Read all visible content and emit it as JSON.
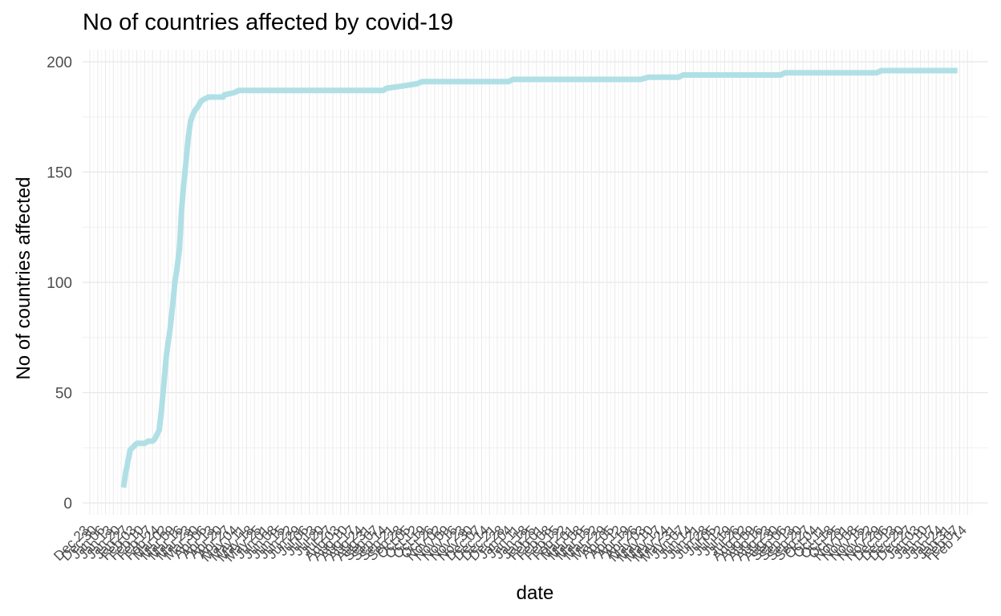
{
  "chart_data": {
    "type": "line",
    "title": "No of countries affected by covid-19",
    "xlabel": "date",
    "ylabel": "No of countries affected",
    "x_type": "date",
    "ylim": [
      0,
      200
    ],
    "yticks": [
      0,
      50,
      100,
      150,
      200
    ],
    "grid": true,
    "line_color": "#b0e0e6",
    "x_tick_labels": [
      "Dec 23",
      "Dec 30",
      "Jan 06",
      "Jan 13",
      "Jan 20",
      "Jan 27",
      "Feb 03",
      "Feb 10",
      "Feb 17",
      "Feb 24",
      "Mar 02",
      "Mar 09",
      "Mar 16",
      "Mar 23",
      "Mar 30",
      "Apr 06",
      "Apr 13",
      "Apr 20",
      "Apr 27",
      "May 04",
      "May 11",
      "May 18",
      "May 25",
      "Jun 01",
      "Jun 08",
      "Jun 15",
      "Jun 22",
      "Jun 29",
      "Jul 06",
      "Jul 13",
      "Jul 20",
      "Jul 27",
      "Aug 03",
      "Aug 10",
      "Aug 17",
      "Aug 24",
      "Aug 31",
      "Sep 07",
      "Sep 14",
      "Sep 21",
      "Sep 28",
      "Oct 05",
      "Oct 12",
      "Oct 19",
      "Oct 26",
      "Nov 02",
      "Nov 09",
      "Nov 16",
      "Nov 23",
      "Nov 30",
      "Dec 07",
      "Dec 14",
      "Dec 21",
      "Dec 28",
      "Jan 04",
      "Jan 11",
      "Jan 18",
      "Jan 25",
      "Feb 01",
      "Feb 08",
      "Feb 15",
      "Feb 22",
      "Mar 01",
      "Mar 08",
      "Mar 15",
      "Mar 22",
      "Mar 29",
      "Apr 05",
      "Apr 12",
      "Apr 19",
      "Apr 26",
      "May 03",
      "May 10",
      "May 17",
      "May 24",
      "May 31",
      "Jun 07",
      "Jun 14",
      "Jun 21",
      "Jun 28",
      "Jul 05",
      "Jul 12",
      "Jul 19",
      "Jul 26",
      "Aug 02",
      "Aug 09",
      "Aug 16",
      "Aug 23",
      "Aug 30",
      "Sep 06",
      "Sep 13",
      "Sep 20",
      "Sep 27",
      "Oct 04",
      "Oct 11",
      "Oct 18",
      "Oct 25",
      "Nov 01",
      "Nov 08",
      "Nov 15",
      "Nov 22",
      "Nov 29",
      "Dec 06",
      "Dec 13",
      "Dec 20",
      "Dec 27",
      "Jan 03",
      "Jan 10",
      "Jan 17",
      "Jan 24",
      "Jan 31",
      "Feb 07",
      "Feb 14"
    ],
    "series": [
      {
        "points": [
          [
            "2020-01-22",
            7
          ],
          [
            "2020-01-23",
            10
          ],
          [
            "2020-01-24",
            14
          ],
          [
            "2020-01-25",
            16
          ],
          [
            "2020-01-26",
            19
          ],
          [
            "2020-01-27",
            21
          ],
          [
            "2020-01-28",
            24
          ],
          [
            "2020-01-30",
            25
          ],
          [
            "2020-02-01",
            26
          ],
          [
            "2020-02-03",
            27
          ],
          [
            "2020-02-07",
            27
          ],
          [
            "2020-02-10",
            27
          ],
          [
            "2020-02-13",
            28
          ],
          [
            "2020-02-17",
            28
          ],
          [
            "2020-02-19",
            29
          ],
          [
            "2020-02-21",
            31
          ],
          [
            "2020-02-23",
            33
          ],
          [
            "2020-02-25",
            42
          ],
          [
            "2020-02-27",
            53
          ],
          [
            "2020-02-29",
            65
          ],
          [
            "2020-03-02",
            73
          ],
          [
            "2020-03-04",
            80
          ],
          [
            "2020-03-06",
            90
          ],
          [
            "2020-03-08",
            100
          ],
          [
            "2020-03-10",
            107
          ],
          [
            "2020-03-12",
            115
          ],
          [
            "2020-03-14",
            133
          ],
          [
            "2020-03-16",
            145
          ],
          [
            "2020-03-18",
            155
          ],
          [
            "2020-03-20",
            166
          ],
          [
            "2020-03-22",
            173
          ],
          [
            "2020-03-24",
            176
          ],
          [
            "2020-03-26",
            178
          ],
          [
            "2020-03-29",
            180
          ],
          [
            "2020-03-31",
            182
          ],
          [
            "2020-04-03",
            183
          ],
          [
            "2020-04-07",
            184
          ],
          [
            "2020-04-20",
            184
          ],
          [
            "2020-04-21",
            185
          ],
          [
            "2020-04-30",
            186
          ],
          [
            "2020-05-04",
            187
          ],
          [
            "2020-09-10",
            187
          ],
          [
            "2020-09-13",
            188
          ],
          [
            "2020-09-27",
            189
          ],
          [
            "2020-10-10",
            190
          ],
          [
            "2020-10-15",
            191
          ],
          [
            "2020-12-31",
            191
          ],
          [
            "2021-01-04",
            192
          ],
          [
            "2021-04-28",
            192
          ],
          [
            "2021-05-05",
            193
          ],
          [
            "2021-06-01",
            193
          ],
          [
            "2021-06-05",
            194
          ],
          [
            "2021-08-31",
            194
          ],
          [
            "2021-09-04",
            195
          ],
          [
            "2021-11-25",
            195
          ],
          [
            "2021-11-29",
            196
          ],
          [
            "2022-02-05",
            196
          ]
        ]
      }
    ]
  }
}
